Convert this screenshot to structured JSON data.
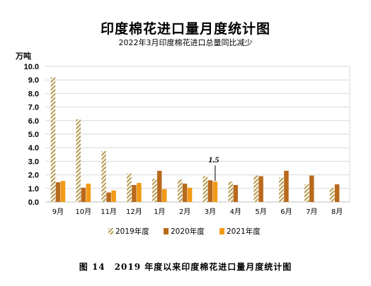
{
  "title": "印度棉花进口量月度统计图",
  "subtitle": "2022年3月印度棉花进口总量同比减少",
  "unit_label": "万吨",
  "caption": "图 14　2019 年度以来印度棉花进口量月度统计图",
  "colors": {
    "s2019": "#b49a50",
    "s2020": "#b8691c",
    "s2021": "#f29a15",
    "grid": "#d9d9d9",
    "axis": "#bfbfbf"
  },
  "chart_data": {
    "type": "bar",
    "categories": [
      "9月",
      "10月",
      "11月",
      "12月",
      "1月",
      "2月",
      "3月",
      "4月",
      "5月",
      "6月",
      "7月",
      "8月"
    ],
    "series": [
      {
        "name": "2019年度",
        "pattern": "hatched",
        "values": [
          9.2,
          6.1,
          3.75,
          2.1,
          1.7,
          1.65,
          1.9,
          1.5,
          1.95,
          1.8,
          1.3,
          1.05
        ]
      },
      {
        "name": "2020年度",
        "pattern": "solid",
        "values": [
          1.45,
          1.05,
          0.7,
          1.25,
          2.3,
          1.35,
          1.6,
          1.25,
          1.9,
          2.3,
          1.95,
          1.3
        ]
      },
      {
        "name": "2021年度",
        "pattern": "solid",
        "values": [
          1.55,
          1.35,
          0.85,
          1.4,
          0.95,
          1.05,
          1.5,
          null,
          null,
          null,
          null,
          null
        ]
      }
    ],
    "ylim": [
      0,
      10
    ],
    "yticks": [
      "0.0",
      "1.0",
      "2.0",
      "3.0",
      "4.0",
      "5.0",
      "6.0",
      "7.0",
      "8.0",
      "9.0",
      "10.0"
    ],
    "grid": true,
    "legend_position": "bottom",
    "annotation": {
      "text": "1.5",
      "category": "3月",
      "series": "2021年度"
    }
  }
}
